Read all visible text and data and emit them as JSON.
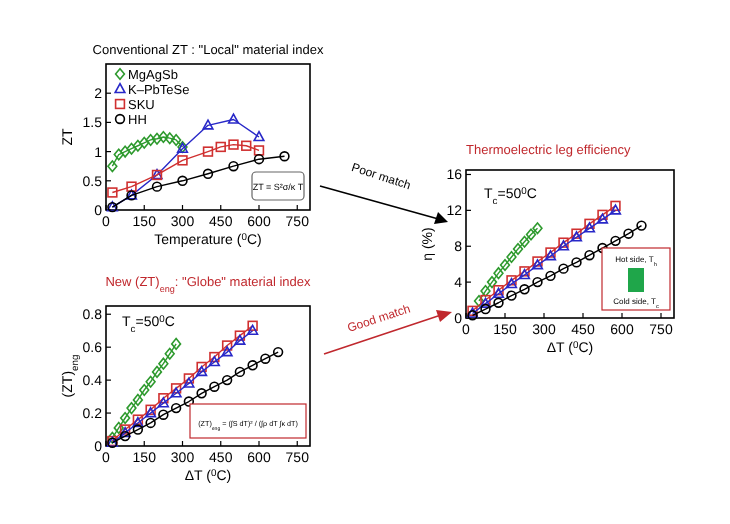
{
  "chart_data": [
    {
      "type": "line",
      "title": "Conventional ZT : \"Local\" material index",
      "xlabel": "Temperature ($^{0}$C)",
      "ylabel": "ZT",
      "xlim": [
        0,
        800
      ],
      "ylim": [
        0,
        2.5
      ],
      "xticks": [
        0,
        150,
        300,
        450,
        600,
        750
      ],
      "yticks": [
        0,
        0.5,
        1,
        1.5,
        2
      ],
      "legend": "top left",
      "annotations": [
        "ZT = S²σ/κ T"
      ],
      "series": [
        {
          "name": "MgAgSb",
          "color": "#2e9a2e",
          "marker": "diamond",
          "x": [
            25,
            50,
            75,
            100,
            125,
            150,
            175,
            200,
            225,
            250,
            275,
            300
          ],
          "values": [
            0.75,
            0.95,
            1.0,
            1.05,
            1.1,
            1.15,
            1.2,
            1.22,
            1.25,
            1.23,
            1.2,
            1.08
          ]
        },
        {
          "name": "K–PbTeSe",
          "color": "#2828c8",
          "marker": "triangle",
          "x": [
            25,
            100,
            200,
            300,
            400,
            500,
            600
          ],
          "values": [
            0.05,
            0.25,
            0.6,
            1.05,
            1.45,
            1.55,
            1.25
          ]
        },
        {
          "name": "SKU",
          "color": "#d03030",
          "marker": "square",
          "x": [
            25,
            100,
            200,
            300,
            400,
            450,
            500,
            550,
            600
          ],
          "values": [
            0.3,
            0.4,
            0.6,
            0.85,
            1.0,
            1.08,
            1.12,
            1.1,
            1.02
          ]
        },
        {
          "name": "HH",
          "color": "#000000",
          "marker": "circle",
          "x": [
            25,
            100,
            200,
            300,
            400,
            500,
            600,
            700
          ],
          "values": [
            0.05,
            0.25,
            0.4,
            0.5,
            0.62,
            0.75,
            0.87,
            0.92
          ]
        }
      ]
    },
    {
      "type": "line",
      "title": "New (ZT)$_{eng}$: \"Globe\" material index",
      "xlabel": "ΔT ($^{0}$C)",
      "ylabel": "(ZT)$_{eng}$",
      "xlim": [
        0,
        800
      ],
      "ylim": [
        0,
        0.85
      ],
      "xticks": [
        0,
        150,
        300,
        450,
        600,
        750
      ],
      "yticks": [
        0,
        0.2,
        0.4,
        0.6,
        0.8
      ],
      "annotations": [
        "T$_{c}$=50$^{0}$C",
        "(ZT)$_{eng}$ = (∫S dT)² / (∫ρ dT ∫κ dT)"
      ],
      "series": [
        {
          "color": "#2e9a2e",
          "marker": "diamond",
          "x": [
            25,
            50,
            75,
            100,
            125,
            150,
            175,
            200,
            225,
            250,
            275
          ],
          "values": [
            0.05,
            0.11,
            0.17,
            0.23,
            0.28,
            0.34,
            0.39,
            0.45,
            0.5,
            0.56,
            0.62
          ]
        },
        {
          "color": "#d03030",
          "marker": "square",
          "x": [
            25,
            75,
            125,
            175,
            225,
            275,
            325,
            375,
            425,
            475,
            525,
            575
          ],
          "values": [
            0.03,
            0.1,
            0.16,
            0.22,
            0.29,
            0.35,
            0.41,
            0.48,
            0.54,
            0.61,
            0.67,
            0.73
          ]
        },
        {
          "color": "#2828c8",
          "marker": "triangle",
          "x": [
            25,
            75,
            125,
            175,
            225,
            275,
            325,
            375,
            425,
            475,
            525,
            575
          ],
          "values": [
            0.02,
            0.08,
            0.14,
            0.2,
            0.26,
            0.32,
            0.38,
            0.45,
            0.51,
            0.57,
            0.64,
            0.7
          ]
        },
        {
          "color": "#000000",
          "marker": "circle",
          "x": [
            25,
            75,
            125,
            175,
            225,
            275,
            325,
            375,
            425,
            475,
            525,
            575,
            625,
            675
          ],
          "values": [
            0.02,
            0.06,
            0.1,
            0.14,
            0.19,
            0.23,
            0.27,
            0.32,
            0.36,
            0.4,
            0.45,
            0.49,
            0.53,
            0.57
          ]
        }
      ]
    },
    {
      "type": "line",
      "title": "Thermoelectric leg efficiency",
      "xlabel": "ΔT ($^{0}$C)",
      "ylabel": "η (%)",
      "xlim": [
        0,
        800
      ],
      "ylim": [
        0,
        16.5
      ],
      "xticks": [
        0,
        150,
        300,
        450,
        600,
        750
      ],
      "yticks": [
        0,
        4,
        8,
        12,
        16
      ],
      "annotations": [
        "T$_{c}$=50$^{0}$C",
        "Hot side, T$_{h}$",
        "Cold side, T$_{c}$",
        "Poor match",
        "Good match"
      ],
      "series": [
        {
          "color": "#2e9a2e",
          "marker": "diamond",
          "x": [
            50,
            75,
            100,
            125,
            150,
            175,
            200,
            225,
            250,
            275
          ],
          "values": [
            1.9,
            3.0,
            4.0,
            5.0,
            5.9,
            6.8,
            7.7,
            8.5,
            9.3,
            10.0
          ]
        },
        {
          "color": "#d03030",
          "marker": "square",
          "x": [
            25,
            75,
            125,
            175,
            225,
            275,
            325,
            375,
            425,
            475,
            525,
            575
          ],
          "values": [
            0.8,
            2.0,
            3.1,
            4.2,
            5.2,
            6.3,
            7.3,
            8.4,
            9.4,
            10.5,
            11.5,
            12.5
          ]
        },
        {
          "color": "#2828c8",
          "marker": "triangle",
          "x": [
            25,
            75,
            125,
            175,
            225,
            275,
            325,
            375,
            425,
            475,
            525,
            575
          ],
          "values": [
            0.5,
            1.6,
            2.7,
            3.8,
            4.8,
            5.9,
            6.9,
            8.0,
            9.0,
            10.0,
            11.0,
            12.0
          ]
        },
        {
          "color": "#000000",
          "marker": "circle",
          "x": [
            25,
            75,
            125,
            175,
            225,
            275,
            325,
            375,
            425,
            475,
            525,
            575,
            625,
            675
          ],
          "values": [
            0.3,
            1.0,
            1.7,
            2.5,
            3.2,
            4.0,
            4.7,
            5.5,
            6.2,
            7.0,
            7.8,
            8.6,
            9.4,
            10.3
          ]
        }
      ]
    }
  ]
}
